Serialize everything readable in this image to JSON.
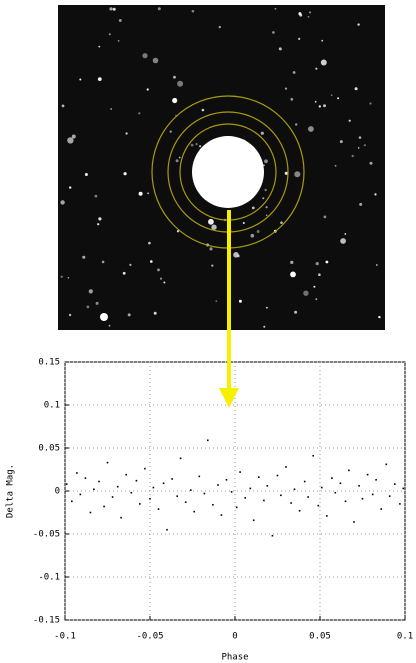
{
  "chart_data": {
    "type": "scatter",
    "xlabel": "Phase",
    "ylabel": "Delta Mag.",
    "xlim": [
      -0.1,
      0.1
    ],
    "ylim": [
      -0.15,
      0.15
    ],
    "xticks": [
      -0.1,
      -0.05,
      0,
      0.05,
      0.1
    ],
    "yticks": [
      -0.15,
      -0.1,
      -0.05,
      0,
      0.05,
      0.1,
      0.15
    ],
    "grid": true,
    "color": "#000000",
    "x": [
      -0.099,
      -0.096,
      -0.093,
      -0.091,
      -0.088,
      -0.085,
      -0.083,
      -0.08,
      -0.077,
      -0.075,
      -0.072,
      -0.069,
      -0.067,
      -0.064,
      -0.061,
      -0.058,
      -0.056,
      -0.053,
      -0.05,
      -0.048,
      -0.045,
      -0.042,
      -0.04,
      -0.037,
      -0.034,
      -0.032,
      -0.029,
      -0.026,
      -0.024,
      -0.021,
      -0.018,
      -0.016,
      -0.013,
      -0.01,
      -0.008,
      -0.005,
      -0.002,
      0.001,
      0.003,
      0.006,
      0.009,
      0.011,
      0.014,
      0.017,
      0.019,
      0.022,
      0.025,
      0.027,
      0.03,
      0.033,
      0.035,
      0.038,
      0.041,
      0.043,
      0.046,
      0.049,
      0.051,
      0.054,
      0.057,
      0.059,
      0.062,
      0.065,
      0.067,
      0.07,
      0.073,
      0.075,
      0.078,
      0.081,
      0.083,
      0.086,
      0.089,
      0.091,
      0.094,
      0.097,
      0.099
    ],
    "values": [
      0.008,
      -0.012,
      0.021,
      -0.004,
      0.015,
      -0.025,
      0.002,
      0.011,
      -0.018,
      0.033,
      -0.007,
      0.005,
      -0.031,
      0.019,
      -0.002,
      0.012,
      -0.015,
      0.026,
      -0.009,
      0.004,
      -0.021,
      0.009,
      -0.045,
      0.014,
      -0.006,
      0.038,
      -0.013,
      0.001,
      -0.024,
      0.017,
      -0.003,
      0.059,
      -0.016,
      0.007,
      -0.028,
      0.013,
      -0.001,
      -0.019,
      0.022,
      -0.008,
      0.003,
      -0.034,
      0.016,
      -0.011,
      0.006,
      -0.052,
      0.018,
      -0.005,
      0.028,
      -0.014,
      0.002,
      -0.023,
      0.011,
      -0.007,
      0.041,
      -0.017,
      0.004,
      -0.029,
      0.015,
      -0.002,
      0.009,
      -0.012,
      0.024,
      -0.036,
      0.006,
      -0.009,
      0.019,
      -0.004,
      0.013,
      -0.021,
      0.031,
      -0.006,
      0.008,
      -0.015,
      0.003
    ]
  }
}
